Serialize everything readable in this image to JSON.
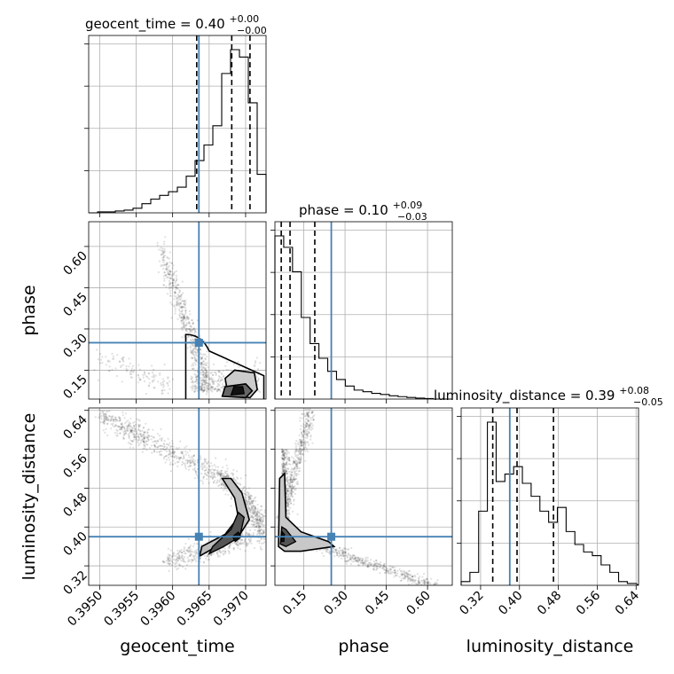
{
  "chart_data": {
    "type": "corner",
    "parameters": [
      {
        "name": "geocent_time",
        "axis_label": "geocent_time",
        "range": [
          0.39485,
          0.39728
        ],
        "ticks": [
          "0.3950",
          "0.3955",
          "0.3960",
          "0.3965",
          "0.3970"
        ],
        "tick_values": [
          0.395,
          0.3955,
          0.396,
          0.3965,
          0.397
        ],
        "title": {
          "main": "geocent_time = 0.40",
          "plus": "+0.00",
          "minus": "−0.00"
        },
        "truth": 0.39636,
        "quantiles": [
          0.39633,
          0.39681,
          0.39706
        ],
        "hist": {
          "edges_from": 0.39485,
          "bin_width": 0.0001215,
          "heights": [
            0,
            1,
            1,
            2,
            3,
            5,
            10,
            15,
            19,
            23,
            28,
            40,
            57,
            74,
            95,
            152,
            178,
            170,
            120,
            42
          ]
        }
      },
      {
        "name": "phase",
        "axis_label": "phase",
        "range": [
          0.045,
          0.69
        ],
        "ticks": [
          "0.15",
          "0.30",
          "0.45",
          "0.60"
        ],
        "tick_values": [
          0.15,
          0.3,
          0.45,
          0.6
        ],
        "title": {
          "main": "phase = 0.10",
          "plus": "+0.09",
          "minus": "−0.03"
        },
        "truth": 0.25,
        "quantiles": [
          0.068,
          0.1,
          0.19
        ],
        "hist": {
          "edges_from": 0.045,
          "bin_width": 0.032,
          "heights": [
            1.0,
            0.93,
            0.78,
            0.5,
            0.34,
            0.25,
            0.17,
            0.12,
            0.08,
            0.055,
            0.045,
            0.035,
            0.028,
            0.02,
            0.015,
            0.01,
            0.006,
            0.003,
            0.0,
            0.0
          ]
        }
      },
      {
        "name": "luminosity_distance",
        "axis_label": "luminosity_distance",
        "range": [
          0.28,
          0.645
        ],
        "ticks": [
          "0.32",
          "0.40",
          "0.48",
          "0.56",
          "0.64"
        ],
        "tick_values": [
          0.32,
          0.4,
          0.48,
          0.56,
          0.64
        ],
        "title": {
          "main": "luminosity_distance = 0.39",
          "plus": "+0.08",
          "minus": "−0.05"
        },
        "truth": 0.38,
        "quantiles": [
          0.345,
          0.395,
          0.47
        ],
        "hist": {
          "edges_from": 0.28,
          "bin_width": 0.018,
          "heights": [
            2,
            7,
            40,
            88,
            56,
            60,
            64,
            55,
            48,
            40,
            34,
            42,
            29,
            22,
            18,
            16,
            11,
            7,
            2,
            1
          ]
        }
      }
    ],
    "truth_color": "#4682b4",
    "grid": true,
    "contour_levels": 3
  }
}
